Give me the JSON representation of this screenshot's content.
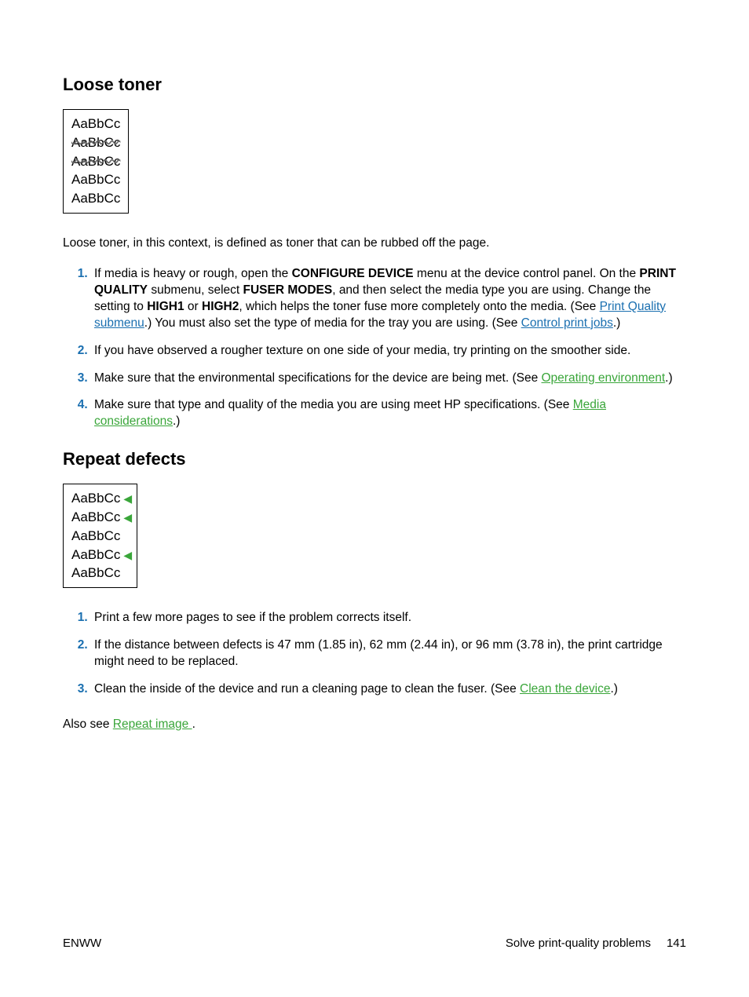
{
  "section1": {
    "heading": "Loose toner",
    "sample": {
      "rows": [
        "AaBbCc",
        "AaBbCc",
        "AaBbCc",
        "AaBbCc",
        "AaBbCc"
      ],
      "smudged_rows": [
        1,
        2
      ]
    },
    "intro": "Loose toner, in this context, is defined as toner that can be rubbed off the page.",
    "items": [
      {
        "pre1": "If media is heavy or rough, open the ",
        "b1": "CONFIGURE DEVICE",
        "mid1": " menu at the device control panel. On the ",
        "b2": "PRINT QUALITY",
        "mid2": " submenu, select ",
        "b3": "FUSER MODES",
        "mid3": ", and then select the media type you are using. Change the setting to ",
        "b4": "HIGH1",
        "mid4": " or ",
        "b5": "HIGH2",
        "mid5": ", which helps the toner fuse more completely onto the media. (See ",
        "link1": "Print Quality submenu",
        "mid6": ".) You must also set the type of media for the tray you are using. (See ",
        "link2": "Control print jobs",
        "tail": ".)"
      },
      {
        "text": "If you have observed a rougher texture on one side of your media, try printing on the smoother side."
      },
      {
        "pre": "Make sure that the environmental specifications for the device are being met. (See ",
        "link": "Operating environment",
        "tail": ".)"
      },
      {
        "pre": "Make sure that type and quality of the media you are using meet HP specifications. (See ",
        "link": "Media considerations",
        "tail": ".)"
      }
    ]
  },
  "section2": {
    "heading": "Repeat defects",
    "sample": {
      "rows": [
        "AaBbCc",
        "AaBbCc",
        "AaBbCc",
        "AaBbCc",
        "AaBbCc"
      ],
      "arrow_rows": [
        0,
        1,
        3
      ]
    },
    "items": [
      {
        "text": "Print a few more pages to see if the problem corrects itself."
      },
      {
        "text": "If the distance between defects is 47 mm (1.85 in), 62 mm (2.44 in), or 96 mm (3.78 in), the print cartridge might need to be replaced."
      },
      {
        "pre": "Clean the inside of the device and run a cleaning page to clean the fuser. (See ",
        "link": "Clean the device",
        "tail": ".)"
      }
    ],
    "also_pre": "Also see ",
    "also_link": "Repeat image ",
    "also_tail": "."
  },
  "footer": {
    "left": "ENWW",
    "right_label": "Solve print-quality problems",
    "page": "141"
  },
  "colors": {
    "link_blue": "#1a6fb0",
    "link_green": "#3aa63a",
    "marker": "#1a6fb0"
  }
}
